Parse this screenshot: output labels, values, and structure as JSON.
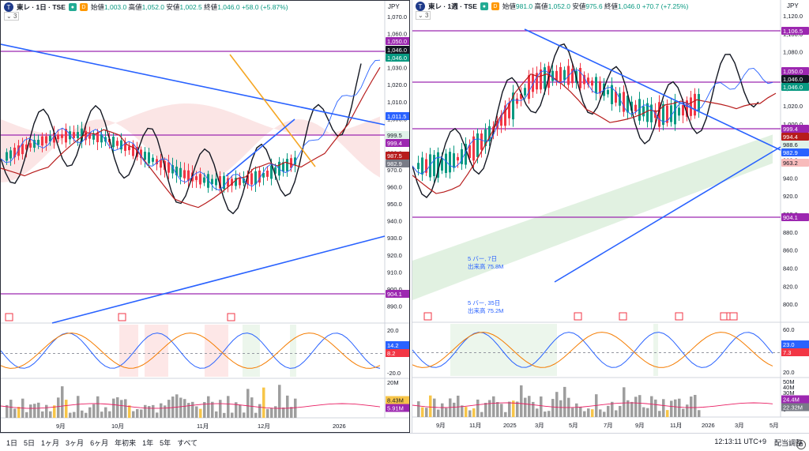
{
  "left": {
    "symbol": "東レ · 1日 · TSE",
    "ohlc": {
      "o_label": "始値",
      "o": "1,003.0",
      "h_label": "高値",
      "h": "1,052.0",
      "l_label": "安値",
      "l": "1,002.5",
      "c_label": "終値",
      "c": "1,046.0",
      "chg": "+58.0 (+5.87%)"
    },
    "indicator_count": "3",
    "currency": "JPY",
    "price_ticks": [
      "1,070.0",
      "1,060.0",
      "1,040.0",
      "1,030.0",
      "1,020.0",
      "1,010.0",
      "1,000.0",
      "990.0",
      "980.0",
      "970.0",
      "960.0",
      "950.0",
      "940.0",
      "930.0",
      "920.0",
      "910.0",
      "900.0",
      "890.0"
    ],
    "badges": [
      {
        "text": "1,050.0",
        "color": "#9c27b0"
      },
      {
        "text": "1,046.0",
        "color": "#131722"
      },
      {
        "text": "1,046.0",
        "color": "#089981"
      },
      {
        "text": "1,011.5",
        "color": "#2962ff"
      },
      {
        "text": "999.5",
        "color": "#e0f2e9",
        "fg": "#131722"
      },
      {
        "text": "999.4",
        "color": "#9c27b0"
      },
      {
        "text": "987.5",
        "color": "#b71c1c"
      },
      {
        "text": "982.9",
        "color": "#787b86"
      },
      {
        "text": "904.1",
        "color": "#9c27b0"
      }
    ],
    "osc_ticks": [
      "20.0",
      "0.0",
      "-20.0"
    ],
    "osc_badges": [
      {
        "text": "14.2",
        "color": "#2962ff"
      },
      {
        "text": "8.2",
        "color": "#f23645"
      }
    ],
    "vol_ticks": [
      "20M"
    ],
    "vol_badges": [
      {
        "text": "8.43M",
        "color": "#f7c548",
        "fg": "#131722"
      },
      {
        "text": "5.91M",
        "color": "#9c27b0"
      }
    ],
    "time_ticks": [
      "9月",
      "10月",
      "11月",
      "12月",
      "2026"
    ]
  },
  "right": {
    "symbol": "東レ · 1週 · TSE",
    "ohlc": {
      "o_label": "始値",
      "o": "981.0",
      "h_label": "高値",
      "h": "1,052.0",
      "l_label": "安値",
      "l": "975.6",
      "c_label": "終値",
      "c": "1,046.0",
      "chg": "+70.7 (+7.25%)"
    },
    "indicator_count": "3",
    "currency": "JPY",
    "price_ticks": [
      "1,120.0",
      "1,100.0",
      "1,080.0",
      "1,060.0",
      "1,040.0",
      "1,020.0",
      "1,000.0",
      "980.0",
      "960.0",
      "940.0",
      "920.0",
      "900.0",
      "880.0",
      "860.0",
      "840.0",
      "820.0",
      "800.0"
    ],
    "badges": [
      {
        "text": "1,106.5",
        "color": "#9c27b0"
      },
      {
        "text": "1,050.0",
        "color": "#9c27b0"
      },
      {
        "text": "1,046.0",
        "color": "#131722"
      },
      {
        "text": "1,046.0",
        "color": "#089981"
      },
      {
        "text": "999.4",
        "color": "#9c27b0"
      },
      {
        "text": "994.4",
        "color": "#b71c1c"
      },
      {
        "text": "988.6",
        "color": "#e0f2e9",
        "fg": "#131722"
      },
      {
        "text": "982.9",
        "color": "#2962ff"
      },
      {
        "text": "963.2",
        "color": "#f8bbbb",
        "fg": "#131722"
      },
      {
        "text": "904.1",
        "color": "#9c27b0"
      }
    ],
    "osc_ticks": [
      "60.0",
      "40.0",
      "20.0"
    ],
    "osc_badges": [
      {
        "text": "23.0",
        "color": "#2962ff"
      },
      {
        "text": "7.3",
        "color": "#f23645"
      }
    ],
    "vol_ticks": [
      "50M",
      "40M",
      "30M",
      "20M",
      "10M",
      "0"
    ],
    "vol_badges": [
      {
        "text": "24.4M",
        "color": "#9c27b0"
      },
      {
        "text": "22.32M",
        "color": "#787b86"
      }
    ],
    "time_ticks": [
      "9月",
      "11月",
      "2025",
      "3月",
      "5月",
      "7月",
      "9月",
      "11月",
      "2026",
      "3月",
      "5月"
    ],
    "annotations": [
      "5 バー, 7日",
      "出来高 75.8M",
      "5 バー, 35日",
      "出来高 75.2M"
    ]
  },
  "timebar": {
    "ranges": [
      "1日",
      "5日",
      "1ヶ月",
      "3ヶ月",
      "6ヶ月",
      "年初来",
      "1年",
      "5年",
      "すべて"
    ],
    "clock": "12:13:11 UTC+9",
    "adjust": "配当調整"
  }
}
